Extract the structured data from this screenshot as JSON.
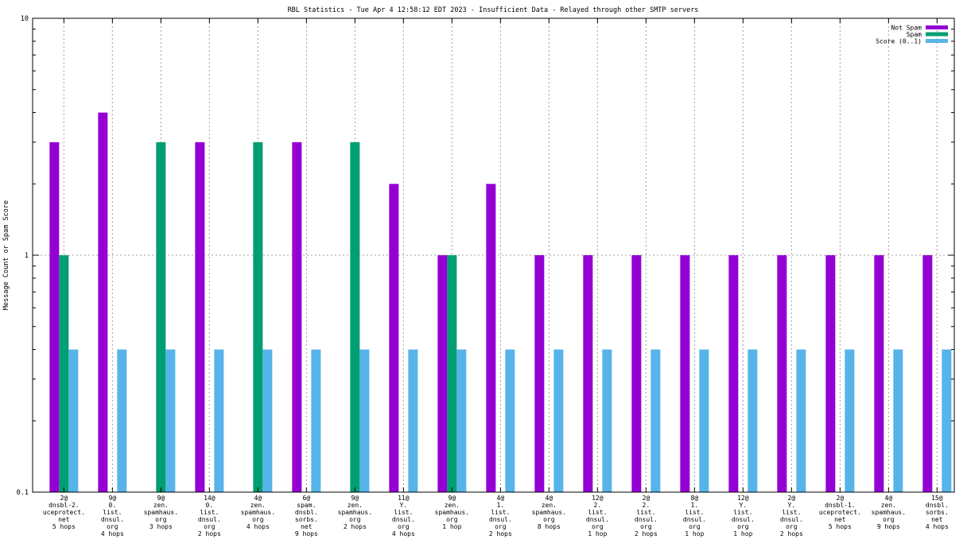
{
  "chart_data": {
    "type": "bar",
    "title": "RBL Statistics - Tue Apr  4 12:58:12 EDT 2023 - Insufficient Data - Relayed through other SMTP servers",
    "ylabel": "Message Count or Spam Score",
    "xlabel": "",
    "yscale": "log",
    "ylim": [
      0.1,
      10
    ],
    "yticks": [
      {
        "value": 0.1,
        "label": "0.1"
      },
      {
        "value": 1,
        "label": "1"
      },
      {
        "value": 10,
        "label": "10"
      }
    ],
    "grid": true,
    "legend_position": "top-right",
    "categories": [
      {
        "lines": [
          "2@",
          "dnsbl-2.",
          "uceprotect.",
          "net",
          "5 hops"
        ]
      },
      {
        "lines": [
          "9@",
          "0.",
          "list.",
          "dnsul.",
          "org",
          "4 hops"
        ]
      },
      {
        "lines": [
          "9@",
          "zen.",
          "spamhaus.",
          "org",
          "3 hops"
        ]
      },
      {
        "lines": [
          "14@",
          "0.",
          "list.",
          "dnsul.",
          "org",
          "2 hops"
        ]
      },
      {
        "lines": [
          "4@",
          "zen.",
          "spamhaus.",
          "org",
          "4 hops"
        ]
      },
      {
        "lines": [
          "6@",
          "spam.",
          "dnsbl.",
          "sorbs.",
          "net",
          "9 hops"
        ]
      },
      {
        "lines": [
          "9@",
          "zen.",
          "spamhaus.",
          "org",
          "2 hops"
        ]
      },
      {
        "lines": [
          "11@",
          "Y.",
          "list.",
          "dnsul.",
          "org",
          "4 hops"
        ]
      },
      {
        "lines": [
          "9@",
          "zen.",
          "spamhaus.",
          "org",
          "1 hop"
        ]
      },
      {
        "lines": [
          "4@",
          "1.",
          "list.",
          "dnsul.",
          "org",
          "2 hops"
        ]
      },
      {
        "lines": [
          "4@",
          "zen.",
          "spamhaus.",
          "org",
          "8 hops"
        ]
      },
      {
        "lines": [
          "12@",
          "2.",
          "list.",
          "dnsul.",
          "org",
          "1 hop"
        ]
      },
      {
        "lines": [
          "2@",
          "2.",
          "list.",
          "dnsul.",
          "org",
          "2 hops"
        ]
      },
      {
        "lines": [
          "8@",
          "1.",
          "list.",
          "dnsul.",
          "org",
          "1 hop"
        ]
      },
      {
        "lines": [
          "12@",
          "Y.",
          "list.",
          "dnsul.",
          "org",
          "1 hop"
        ]
      },
      {
        "lines": [
          "2@",
          "Y.",
          "list.",
          "dnsul.",
          "org",
          "2 hops"
        ]
      },
      {
        "lines": [
          "2@",
          "dnsbl-1.",
          "uceprotect.",
          "net",
          "5 hops"
        ]
      },
      {
        "lines": [
          "4@",
          "zen.",
          "spamhaus.",
          "org",
          "9 hops"
        ]
      },
      {
        "lines": [
          "15@",
          "dnsbl.",
          "sorbs.",
          "net",
          "4 hops"
        ]
      }
    ],
    "series": [
      {
        "name": "Not Spam",
        "color": "#9400d3",
        "values": [
          3,
          4,
          null,
          3,
          null,
          3,
          null,
          2,
          1,
          2,
          1,
          1,
          1,
          1,
          1,
          1,
          1,
          1,
          1
        ]
      },
      {
        "name": "Spam",
        "color": "#009e73",
        "values": [
          1,
          null,
          3,
          null,
          3,
          null,
          3,
          null,
          1,
          null,
          null,
          null,
          null,
          null,
          null,
          null,
          null,
          null,
          null
        ]
      },
      {
        "name": "Score (0..1)",
        "color": "#56b4e9",
        "values": [
          0.4,
          0.4,
          0.4,
          0.4,
          0.4,
          0.4,
          0.4,
          0.4,
          0.4,
          0.4,
          0.4,
          0.4,
          0.4,
          0.4,
          0.4,
          0.4,
          0.4,
          0.4,
          0.4
        ]
      }
    ]
  }
}
